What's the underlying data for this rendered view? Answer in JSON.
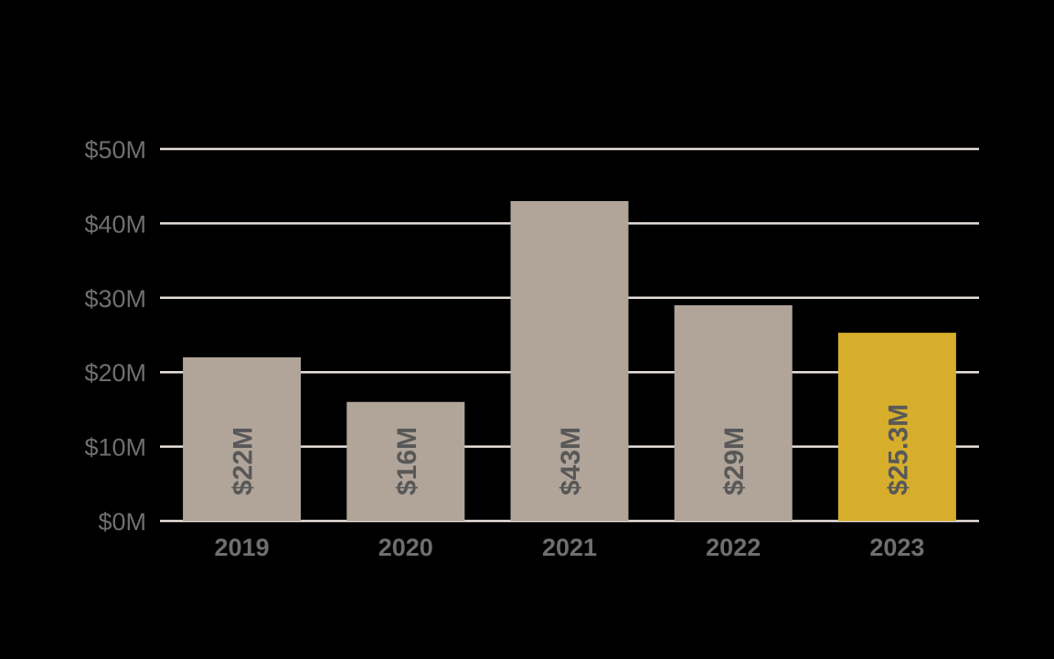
{
  "chart_data": {
    "type": "bar",
    "title": "",
    "xlabel": "",
    "ylabel": "",
    "categories": [
      "2019",
      "2020",
      "2021",
      "2022",
      "2023"
    ],
    "values": [
      22,
      16,
      43,
      29,
      25.3
    ],
    "data_labels": [
      "$22M",
      "$16M",
      "$43M",
      "$29M",
      "$25.3M"
    ],
    "ylim": [
      0,
      50
    ],
    "y_ticks": [
      0,
      10,
      20,
      30,
      40,
      50
    ],
    "y_tick_labels": [
      "$0M",
      "$10M",
      "$20M",
      "$30M",
      "$40M",
      "$50M"
    ],
    "grid": true,
    "legend": "none",
    "colors": {
      "background": "#000000",
      "bar": "#b1a59a",
      "highlight_bar": "#d6ae2b",
      "highlight_category": "2023",
      "gridline": "#e6e1dc",
      "tick_text": "#6f6f6f",
      "data_label_text": "#585858"
    }
  }
}
